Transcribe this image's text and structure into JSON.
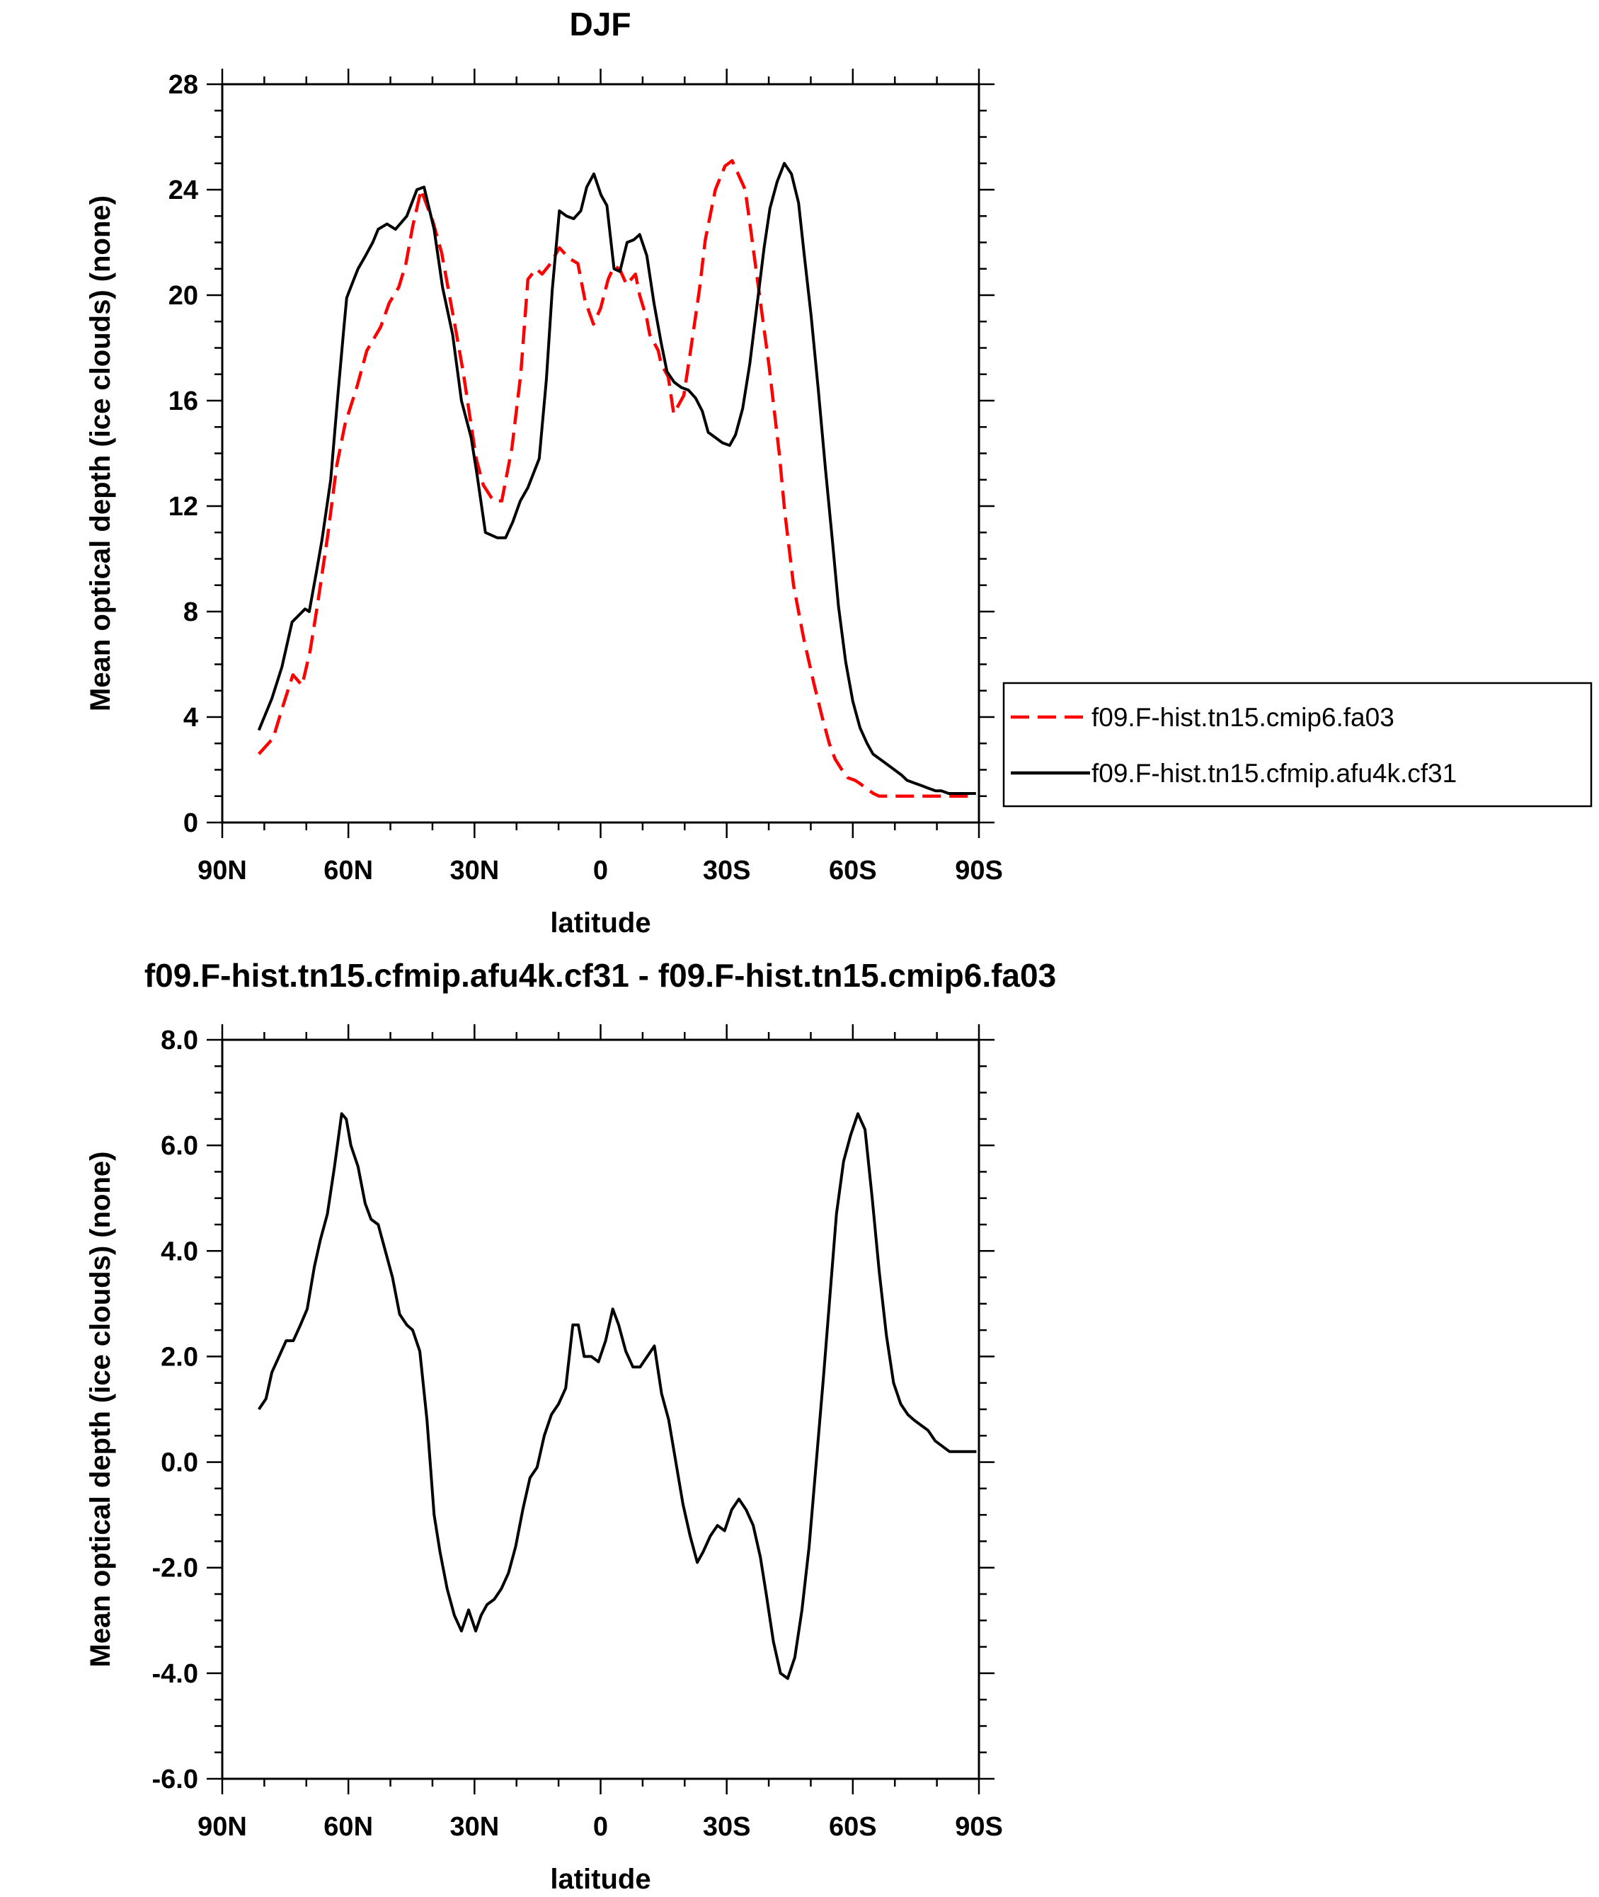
{
  "chart_data": [
    {
      "type": "line",
      "title": "DJF",
      "xlabel": "latitude",
      "ylabel": "Mean optical depth (ice clouds) (none)",
      "xlim": [
        90,
        -90
      ],
      "ylim": [
        0,
        28
      ],
      "x_ticks": [
        "90N",
        "60N",
        "30N",
        "0",
        "30S",
        "60S",
        "90S"
      ],
      "y_ticks": [
        "0",
        "4",
        "8",
        "12",
        "16",
        "20",
        "24",
        "28"
      ],
      "legend": "outside-right",
      "grid": false,
      "series": [
        {
          "name": "f09.F-hist.tn15.cmip6.fa03",
          "color": "#ff0000",
          "dash": "dashed",
          "x": [
            81.3,
            77.9,
            75.6,
            73.2,
            71.0,
            69.1,
            67.3,
            64.9,
            62.8,
            60.8,
            58.0,
            55.6,
            52.3,
            50.3,
            48.0,
            46.3,
            44.7,
            42.7,
            39.9,
            37.8,
            34.7,
            32.7,
            29.6,
            27.9,
            25.5,
            23.5,
            21.1,
            19.0,
            17.3,
            15.3,
            13.9,
            11.9,
            9.8,
            7.5,
            5.4,
            3.7,
            1.7,
            0.0,
            -1.8,
            -3.2,
            -4.5,
            -6.2,
            -8.3,
            -9.3,
            -11.0,
            -11.7,
            -13.7,
            -14.4,
            -16.1,
            -17.4,
            -19.8,
            -21.5,
            -23.5,
            -24.9,
            -27.3,
            -29.6,
            -31.3,
            -34.4,
            -35.7,
            -37.8,
            -40.1,
            -42.5,
            -43.8,
            -45.9,
            -48.3,
            -50.7,
            -52.7,
            -54.4,
            -55.8,
            -57.4,
            -58.8,
            -60.5,
            -61.5,
            -63.2,
            -64.9,
            -66.3,
            -67.3,
            -68.6,
            -70.7,
            -71.7,
            -73.1,
            -74.8,
            -76.8,
            -78.9,
            -80.9,
            -82.6,
            -85.0,
            -87.0,
            -89.4
          ],
          "y": [
            2.6,
            3.2,
            4.4,
            5.6,
            5.2,
            6.5,
            8.3,
            10.9,
            13.5,
            15.1,
            16.5,
            17.9,
            18.8,
            19.7,
            20.3,
            21.2,
            22.6,
            24.0,
            22.8,
            21.6,
            18.9,
            17.1,
            13.8,
            12.8,
            12.2,
            12.2,
            14.2,
            17.0,
            20.6,
            21.0,
            20.8,
            21.2,
            21.8,
            21.4,
            21.2,
            19.8,
            18.9,
            19.5,
            20.6,
            21.1,
            21.0,
            20.4,
            20.8,
            20.0,
            19.1,
            18.5,
            17.9,
            17.4,
            16.9,
            15.5,
            16.2,
            18.0,
            20.2,
            22.1,
            24.0,
            24.9,
            25.1,
            24.0,
            22.5,
            20.0,
            17.3,
            14.0,
            11.8,
            9.0,
            7.0,
            5.3,
            4.0,
            3.0,
            2.4,
            2.0,
            1.7,
            1.6,
            1.5,
            1.3,
            1.1,
            1.0,
            1.0,
            1.0,
            1.0,
            1.0,
            1.0,
            1.0,
            1.0,
            1.0,
            1.0,
            1.0,
            1.0,
            1.0,
            1.0
          ]
        },
        {
          "name": "f09.F-hist.tn15.cfmip.afu4k.cf31",
          "color": "#000000",
          "dash": "solid",
          "x": [
            81.3,
            78.2,
            75.8,
            73.4,
            70.3,
            69.3,
            67.6,
            66.3,
            64.2,
            62.5,
            61.1,
            60.4,
            58.7,
            57.7,
            55.9,
            54.2,
            52.9,
            50.8,
            48.8,
            46.1,
            43.7,
            42.0,
            39.6,
            37.6,
            35.2,
            33.1,
            30.8,
            29.4,
            27.4,
            24.6,
            22.6,
            20.9,
            19.1,
            17.3,
            14.6,
            12.9,
            11.5,
            9.8,
            8.1,
            6.4,
            4.7,
            3.3,
            1.6,
            -0.1,
            -1.5,
            -3.2,
            -4.6,
            -6.3,
            -7.9,
            -9.3,
            -11.0,
            -12.7,
            -14.4,
            -15.8,
            -17.5,
            -19.2,
            -20.9,
            -22.6,
            -24.2,
            -25.6,
            -27.3,
            -29.0,
            -30.7,
            -32.1,
            -33.8,
            -35.5,
            -37.2,
            -38.9,
            -40.3,
            -42.0,
            -43.7,
            -45.4,
            -47.1,
            -48.4,
            -50.1,
            -51.8,
            -53.5,
            -55.2,
            -56.6,
            -58.3,
            -60.0,
            -61.7,
            -63.4,
            -64.8,
            -66.5,
            -68.2,
            -69.9,
            -71.6,
            -72.9,
            -74.6,
            -76.3,
            -78.0,
            -79.7,
            -81.1,
            -82.8,
            -84.5,
            -86.2,
            -87.9,
            -89.3
          ],
          "y": [
            3.5,
            4.7,
            5.9,
            7.6,
            8.1,
            8.0,
            9.5,
            10.7,
            13.0,
            16.2,
            18.7,
            19.9,
            20.6,
            21.0,
            21.5,
            22.0,
            22.5,
            22.7,
            22.5,
            23.0,
            24.0,
            24.1,
            22.5,
            20.3,
            18.5,
            16.0,
            14.6,
            13.2,
            11.0,
            10.8,
            10.8,
            11.4,
            12.2,
            12.7,
            13.8,
            16.8,
            20.2,
            23.2,
            23.0,
            22.9,
            23.2,
            24.1,
            24.6,
            23.8,
            23.4,
            21.0,
            20.9,
            22.0,
            22.1,
            22.3,
            21.5,
            19.7,
            18.2,
            17.1,
            16.7,
            16.5,
            16.4,
            16.1,
            15.6,
            14.8,
            14.6,
            14.4,
            14.3,
            14.7,
            15.7,
            17.4,
            19.6,
            21.8,
            23.3,
            24.3,
            25.0,
            24.6,
            23.5,
            21.6,
            19.2,
            16.4,
            13.4,
            10.6,
            8.2,
            6.1,
            4.6,
            3.6,
            3.0,
            2.6,
            2.4,
            2.2,
            2.0,
            1.8,
            1.6,
            1.5,
            1.4,
            1.3,
            1.2,
            1.2,
            1.1,
            1.1,
            1.1,
            1.1,
            1.1
          ]
        }
      ]
    },
    {
      "type": "line",
      "title": "f09.F-hist.tn15.cfmip.afu4k.cf31 - f09.F-hist.tn15.cmip6.fa03",
      "xlabel": "latitude",
      "ylabel": "Mean optical depth (ice clouds) (none)",
      "xlim": [
        90,
        -90
      ],
      "ylim": [
        -6.0,
        8.0
      ],
      "x_ticks": [
        "90N",
        "60N",
        "30N",
        "0",
        "30S",
        "60S",
        "90S"
      ],
      "y_ticks": [
        "-6.0",
        "-4.0",
        "-2.0",
        "0.0",
        "2.0",
        "4.0",
        "6.0",
        "8.0"
      ],
      "grid": false,
      "series": [
        {
          "color": "#000000",
          "dash": "solid",
          "x": [
            81.3,
            79.6,
            78.2,
            76.5,
            74.8,
            73.1,
            71.4,
            69.8,
            68.1,
            66.7,
            65.0,
            63.3,
            61.6,
            60.5,
            59.4,
            57.7,
            56.0,
            54.6,
            52.9,
            51.2,
            49.5,
            47.8,
            46.1,
            44.7,
            43.0,
            41.3,
            39.6,
            38.2,
            36.5,
            34.8,
            33.1,
            31.4,
            29.7,
            28.4,
            27.0,
            25.3,
            23.6,
            21.9,
            20.2,
            18.5,
            16.8,
            15.1,
            13.4,
            11.7,
            10.0,
            8.3,
            6.6,
            5.3,
            3.9,
            2.2,
            0.5,
            -1.2,
            -2.9,
            -4.3,
            -6.0,
            -7.7,
            -9.4,
            -11.1,
            -12.8,
            -14.5,
            -16.2,
            -17.9,
            -19.6,
            -21.3,
            -23.0,
            -24.4,
            -26.1,
            -27.8,
            -29.5,
            -31.2,
            -32.9,
            -34.6,
            -36.3,
            -38.0,
            -39.4,
            -41.1,
            -42.8,
            -44.5,
            -46.2,
            -47.9,
            -49.6,
            -51.3,
            -53.0,
            -54.7,
            -56.1,
            -57.8,
            -59.5,
            -61.2,
            -62.9,
            -64.6,
            -66.3,
            -68.0,
            -69.7,
            -71.4,
            -73.1,
            -74.5,
            -76.2,
            -77.9,
            -79.6,
            -81.3,
            -83.0,
            -84.7,
            -86.4,
            -88.1,
            -89.4
          ],
          "y": [
            1.0,
            1.2,
            1.7,
            2.0,
            2.3,
            2.3,
            2.6,
            2.9,
            3.7,
            4.2,
            4.7,
            5.6,
            6.6,
            6.5,
            6.0,
            5.6,
            4.9,
            4.6,
            4.5,
            4.0,
            3.5,
            2.8,
            2.6,
            2.5,
            2.1,
            0.8,
            -1.0,
            -1.7,
            -2.4,
            -2.9,
            -3.2,
            -2.8,
            -3.2,
            -2.9,
            -2.7,
            -2.6,
            -2.4,
            -2.1,
            -1.6,
            -0.9,
            -0.3,
            -0.1,
            0.5,
            0.9,
            1.1,
            1.4,
            2.6,
            2.6,
            2.0,
            2.0,
            1.9,
            2.3,
            2.9,
            2.6,
            2.1,
            1.8,
            1.8,
            2.0,
            2.2,
            1.3,
            0.8,
            0.0,
            -0.8,
            -1.4,
            -1.9,
            -1.7,
            -1.4,
            -1.2,
            -1.3,
            -0.9,
            -0.7,
            -0.9,
            -1.2,
            -1.8,
            -2.5,
            -3.4,
            -4.0,
            -4.1,
            -3.7,
            -2.8,
            -1.6,
            0.0,
            1.6,
            3.3,
            4.7,
            5.7,
            6.2,
            6.6,
            6.3,
            5.0,
            3.6,
            2.4,
            1.5,
            1.1,
            0.9,
            0.8,
            0.7,
            0.6,
            0.4,
            0.3,
            0.2,
            0.2,
            0.2,
            0.2,
            0.2
          ]
        }
      ]
    }
  ]
}
